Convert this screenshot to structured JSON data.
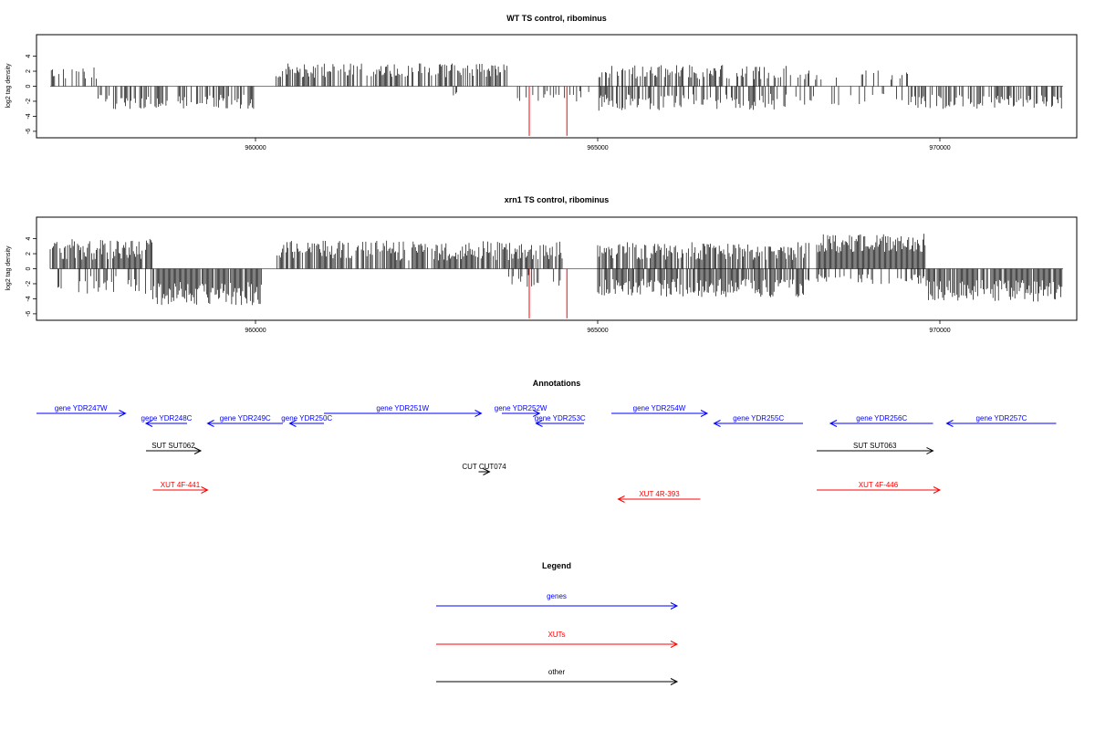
{
  "chart_data": [
    {
      "type": "bar",
      "title": "WT TS control, ribominus",
      "ylabel": "log2 tag density",
      "xlim": [
        956800,
        972000
      ],
      "ylim": [
        -6.5,
        6.5
      ],
      "xticks": [
        960000,
        965000,
        970000
      ],
      "xtick_labels": [
        "960000",
        "965000",
        "970000"
      ],
      "yticks": [
        -6,
        -4,
        -2,
        0,
        2,
        4
      ],
      "ytick_labels": [
        "-6",
        "-4",
        "-2",
        "0",
        "2",
        "4"
      ],
      "grid": false,
      "highlight_color": "#ff0000",
      "bar_color": "#000000",
      "highlight_bars": [
        {
          "x": 964000,
          "y": -6.6
        },
        {
          "x": 964550,
          "y": -6.6
        }
      ],
      "segments": [
        {
          "x0": 957000,
          "x1": 957700,
          "sign": 1,
          "base": 1.5,
          "var": 1.0,
          "density": 0.35
        },
        {
          "x0": 957700,
          "x1": 960000,
          "sign": -1,
          "base": 1.8,
          "var": 1.2,
          "density": 0.6
        },
        {
          "x0": 960300,
          "x1": 963700,
          "sign": 1,
          "base": 1.8,
          "var": 1.2,
          "density": 0.65
        },
        {
          "x0": 962700,
          "x1": 963000,
          "sign": -1,
          "base": 1.0,
          "var": 0.5,
          "density": 0.1
        },
        {
          "x0": 963700,
          "x1": 964900,
          "sign": -1,
          "base": 1.0,
          "var": 1.0,
          "density": 0.2
        },
        {
          "x0": 965000,
          "x1": 967800,
          "sign": 1,
          "base": 1.6,
          "var": 1.2,
          "density": 0.5
        },
        {
          "x0": 965000,
          "x1": 967800,
          "sign": -1,
          "base": 1.8,
          "var": 1.4,
          "density": 0.45
        },
        {
          "x0": 967800,
          "x1": 969600,
          "sign": 1,
          "base": 1.3,
          "var": 0.8,
          "density": 0.2
        },
        {
          "x0": 967800,
          "x1": 969600,
          "sign": -1,
          "base": 1.5,
          "var": 1.0,
          "density": 0.2
        },
        {
          "x0": 969600,
          "x1": 971800,
          "sign": -1,
          "base": 1.8,
          "var": 1.2,
          "density": 0.55
        }
      ]
    },
    {
      "type": "bar",
      "title": "xrn1 TS control, ribominus",
      "ylabel": "log2 tag density",
      "xlim": [
        956800,
        972000
      ],
      "ylim": [
        -6.5,
        6.5
      ],
      "xticks": [
        960000,
        965000,
        970000
      ],
      "xtick_labels": [
        "960000",
        "965000",
        "970000"
      ],
      "yticks": [
        -6,
        -4,
        -2,
        0,
        2,
        4
      ],
      "ytick_labels": [
        "-6",
        "-4",
        "-2",
        "0",
        "2",
        "4"
      ],
      "grid": false,
      "highlight_color": "#ff0000",
      "bar_color": "#000000",
      "highlight_bars": [
        {
          "x": 964000,
          "y": -6.6
        },
        {
          "x": 964550,
          "y": -6.6
        }
      ],
      "segments": [
        {
          "x0": 957000,
          "x1": 958500,
          "sign": 1,
          "base": 2.2,
          "var": 1.8,
          "density": 0.85
        },
        {
          "x0": 957000,
          "x1": 958500,
          "sign": -1,
          "base": 1.8,
          "var": 1.5,
          "density": 0.35
        },
        {
          "x0": 958500,
          "x1": 960100,
          "sign": -1,
          "base": 2.8,
          "var": 2.0,
          "density": 0.95
        },
        {
          "x0": 960300,
          "x1": 962000,
          "sign": 1,
          "base": 2.2,
          "var": 1.5,
          "density": 0.75
        },
        {
          "x0": 962000,
          "x1": 964500,
          "sign": 1,
          "base": 2.0,
          "var": 1.6,
          "density": 0.8
        },
        {
          "x0": 963700,
          "x1": 964500,
          "sign": -1,
          "base": 1.4,
          "var": 1.0,
          "density": 0.25
        },
        {
          "x0": 965000,
          "x1": 968100,
          "sign": 1,
          "base": 2.0,
          "var": 1.5,
          "density": 0.75
        },
        {
          "x0": 965000,
          "x1": 968100,
          "sign": -1,
          "base": 2.2,
          "var": 1.6,
          "density": 0.8
        },
        {
          "x0": 968200,
          "x1": 969800,
          "sign": 1,
          "base": 3.0,
          "var": 1.6,
          "density": 1.0
        },
        {
          "x0": 968200,
          "x1": 969800,
          "sign": -1,
          "base": 1.2,
          "var": 0.8,
          "density": 0.3
        },
        {
          "x0": 969800,
          "x1": 971800,
          "sign": -1,
          "base": 2.5,
          "var": 1.8,
          "density": 0.9
        }
      ]
    }
  ],
  "annotations": {
    "title": "Annotations",
    "features": [
      {
        "label": "gene YDR247W",
        "x0": 956800,
        "x1": 958100,
        "strand": "+",
        "row": 0,
        "color": "#0000ff"
      },
      {
        "label": "gene YDR248C",
        "x0": 958400,
        "x1": 959000,
        "strand": "-",
        "row": 1,
        "color": "#0000ff"
      },
      {
        "label": "gene YDR249C",
        "x0": 959300,
        "x1": 960400,
        "strand": "-",
        "row": 1,
        "color": "#0000ff"
      },
      {
        "label": "gene YDR250C",
        "x0": 960500,
        "x1": 961000,
        "strand": "-",
        "row": 1,
        "color": "#0000ff"
      },
      {
        "label": "gene YDR251W",
        "x0": 961000,
        "x1": 963300,
        "strand": "+",
        "row": 0,
        "color": "#0000ff"
      },
      {
        "label": "gene YDR252W",
        "x0": 963600,
        "x1": 964150,
        "strand": "+",
        "row": 0,
        "color": "#0000ff"
      },
      {
        "label": "gene YDR253C",
        "x0": 964100,
        "x1": 964800,
        "strand": "-",
        "row": 1,
        "color": "#0000ff"
      },
      {
        "label": "gene YDR254W",
        "x0": 965200,
        "x1": 966600,
        "strand": "+",
        "row": 0,
        "color": "#0000ff"
      },
      {
        "label": "gene YDR255C",
        "x0": 966700,
        "x1": 968000,
        "strand": "-",
        "row": 1,
        "color": "#0000ff"
      },
      {
        "label": "gene YDR256C",
        "x0": 968400,
        "x1": 969900,
        "strand": "-",
        "row": 1,
        "color": "#0000ff"
      },
      {
        "label": "gene YDR257C",
        "x0": 970100,
        "x1": 971700,
        "strand": "-",
        "row": 1,
        "color": "#0000ff"
      },
      {
        "label": "SUT SUT062",
        "x0": 958400,
        "x1": 959200,
        "strand": "+",
        "row": 2,
        "color": "#000000"
      },
      {
        "label": "SUT SUT063",
        "x0": 968200,
        "x1": 969900,
        "strand": "+",
        "row": 2,
        "color": "#000000"
      },
      {
        "label": "CUT CUT074",
        "x0": 963260,
        "x1": 963420,
        "strand": "+",
        "row": 3,
        "color": "#000000"
      },
      {
        "label": "XUT 4F-441",
        "x0": 958500,
        "x1": 959300,
        "strand": "+",
        "row": 4,
        "color": "#ff0000"
      },
      {
        "label": "XUT 4R-393",
        "x0": 965300,
        "x1": 966500,
        "strand": "-",
        "row": 5,
        "color": "#ff0000"
      },
      {
        "label": "XUT 4F-446",
        "x0": 968200,
        "x1": 970000,
        "strand": "+",
        "row": 4,
        "color": "#ff0000"
      }
    ]
  },
  "legend": {
    "title": "Legend",
    "entries": [
      {
        "label": "genes",
        "color": "#0000ff"
      },
      {
        "label": "XUTs",
        "color": "#ff0000"
      },
      {
        "label": "other",
        "color": "#000000"
      }
    ]
  }
}
